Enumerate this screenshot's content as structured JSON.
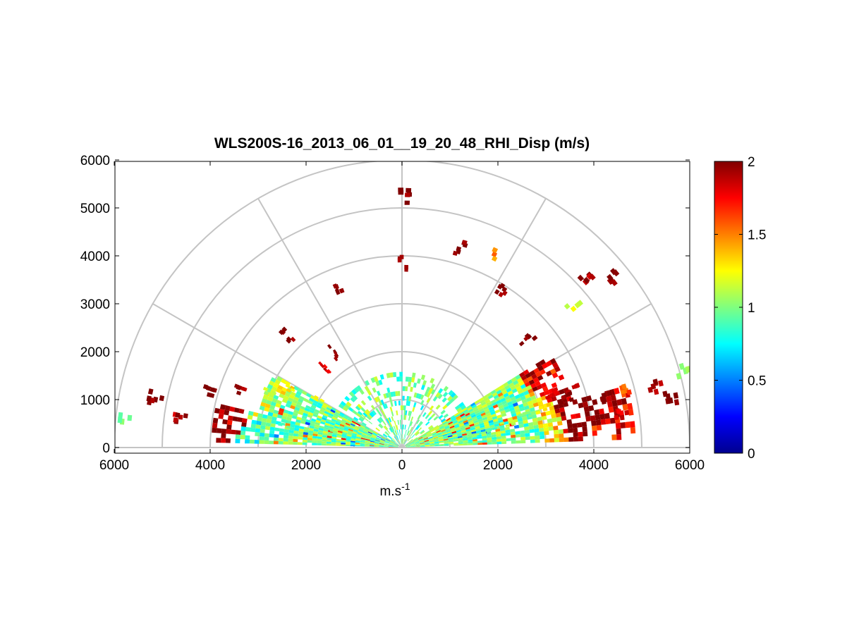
{
  "chart_data": {
    "type": "heatmap",
    "subtype": "polar-rhi-scan",
    "title": "WLS200S-16_2013_06_01__19_20_48_RHI_Disp (m/s)",
    "xlabel": "m.s",
    "xlabel_superscript": "-1",
    "ylabel": "",
    "xlim": [
      -6000,
      6000
    ],
    "ylim": [
      0,
      6000
    ],
    "x_ticks": [
      -6000,
      -4000,
      -2000,
      0,
      2000,
      4000,
      6000
    ],
    "x_tick_labels": [
      "6000",
      "4000",
      "2000",
      "0",
      "2000",
      "4000",
      "6000"
    ],
    "y_ticks": [
      0,
      1000,
      2000,
      3000,
      4000,
      5000,
      6000
    ],
    "y_tick_labels": [
      "0",
      "1000",
      "2000",
      "3000",
      "4000",
      "5000",
      "6000"
    ],
    "polar_grid": {
      "range_rings_m": [
        1000,
        2000,
        3000,
        4000,
        5000,
        6000
      ],
      "angle_spokes_deg": [
        0,
        30,
        60,
        90,
        120,
        150,
        180
      ]
    },
    "colorbar": {
      "min": 0,
      "max": 2,
      "ticks": [
        0,
        0.5,
        1,
        1.5,
        2
      ],
      "tick_labels": [
        "0",
        "0.5",
        "1",
        "1.5",
        "2"
      ],
      "colormap": "jet"
    },
    "value_distribution": {
      "near_range_below_3000m": "mostly 0.8-1.1 (cyan-green-yellow)",
      "far_range_and_high_altitude": "scattered 1.5-2 (red, dark red)",
      "low_values": "sparse 0.3-0.6 (blue) near 1500-2500 m range"
    },
    "observations": [
      {
        "r": 6000,
        "el": 15,
        "v": 1.0
      },
      {
        "r": 5700,
        "el": 10,
        "v": 2.0
      },
      {
        "r": 5400,
        "el": 13,
        "v": 1.9
      },
      {
        "r": 4800,
        "el": 14,
        "v": 1.6
      },
      {
        "r": 4600,
        "el": 8,
        "v": 1.8
      },
      {
        "r": 4300,
        "el": 13,
        "v": 2.0
      },
      {
        "r": 3700,
        "el": 18,
        "v": 1.9
      },
      {
        "r": 3500,
        "el": 16,
        "v": 2.0
      },
      {
        "r": 3300,
        "el": 19,
        "v": 1.8
      },
      {
        "r": 3000,
        "el": 15,
        "v": 1.3
      },
      {
        "r": 2600,
        "el": 14,
        "v": 1.0
      },
      {
        "r": 2200,
        "el": 12,
        "v": 1.1
      },
      {
        "r": 1800,
        "el": 10,
        "v": 0.9
      },
      {
        "r": 1400,
        "el": 8,
        "v": 1.0
      },
      {
        "r": 5600,
        "el": 38,
        "v": 2.0
      },
      {
        "r": 5200,
        "el": 42,
        "v": 1.9
      },
      {
        "r": 4600,
        "el": 39,
        "v": 1.2
      },
      {
        "r": 3400,
        "el": 40,
        "v": 2.0
      },
      {
        "r": 3900,
        "el": 57,
        "v": 2.0
      },
      {
        "r": 4400,
        "el": 64,
        "v": 1.5
      },
      {
        "r": 4300,
        "el": 73,
        "v": 2.0
      },
      {
        "r": 5200,
        "el": 89,
        "v": 2.0
      },
      {
        "r": 3800,
        "el": 89,
        "v": 2.0
      },
      {
        "r": 3600,
        "el": 111,
        "v": 2.0
      },
      {
        "r": 3300,
        "el": 135,
        "v": 2.0
      },
      {
        "r": 2400,
        "el": 125,
        "v": 2.0
      },
      {
        "r": 2300,
        "el": 133,
        "v": 1.8
      },
      {
        "r": 2000,
        "el": 150,
        "v": 1.2
      },
      {
        "r": 2600,
        "el": 152,
        "v": 1.3
      },
      {
        "r": 3000,
        "el": 157,
        "v": 1.1
      },
      {
        "r": 3600,
        "el": 160,
        "v": 1.9
      },
      {
        "r": 4100,
        "el": 163,
        "v": 2.0
      },
      {
        "r": 4600,
        "el": 172,
        "v": 1.9
      },
      {
        "r": 5200,
        "el": 168,
        "v": 2.0
      },
      {
        "r": 5800,
        "el": 173,
        "v": 1.0
      },
      {
        "r": 2500,
        "el": 168,
        "v": 0.9
      },
      {
        "r": 1500,
        "el": 165,
        "v": 1.0
      },
      {
        "r": 900,
        "el": 140,
        "v": 1.0
      }
    ]
  }
}
